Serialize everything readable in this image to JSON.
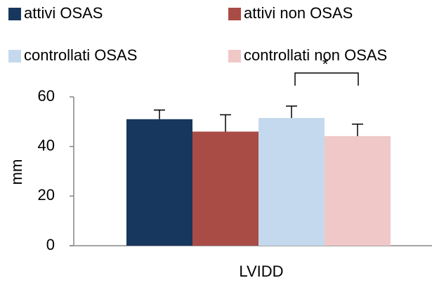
{
  "chart_data": {
    "type": "bar",
    "categories": [
      "LVIDD"
    ],
    "y_label": "mm",
    "annotation": "*",
    "series": [
      {
        "name": "attivi OSAS",
        "color": "#17375e",
        "values": [
          51
        ],
        "errors": [
          3.7
        ]
      },
      {
        "name": "attivi non OSAS",
        "color": "#a94c46",
        "values": [
          46
        ],
        "errors": [
          6.8
        ]
      },
      {
        "name": "controllati OSAS",
        "color": "#c5d9ee",
        "values": [
          51.5
        ],
        "errors": [
          4.8
        ]
      },
      {
        "name": "controllati non OSAS",
        "color": "#f0c8c8",
        "values": [
          44.2
        ],
        "errors": [
          4.8
        ]
      }
    ],
    "ylim": [
      0,
      60
    ],
    "yticks": [
      0,
      20,
      40,
      60
    ],
    "grid": false
  }
}
